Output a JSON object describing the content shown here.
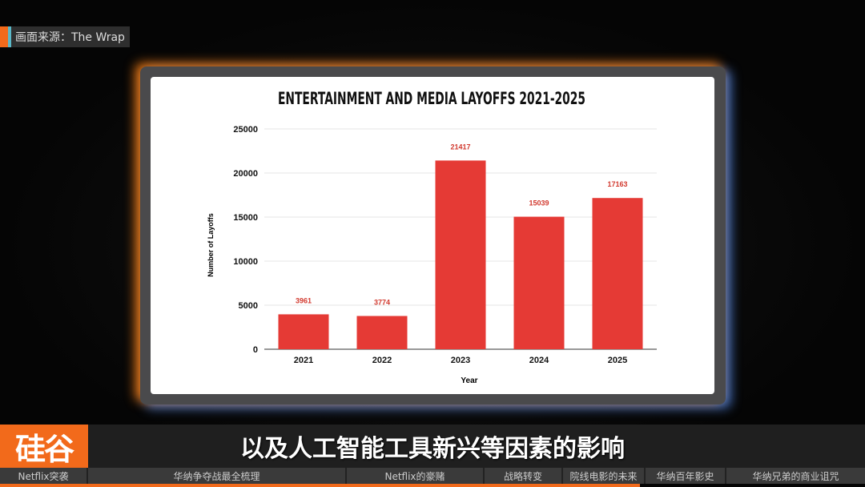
{
  "source_label": "画面来源：The Wrap",
  "logo": "硅谷101",
  "caption": "以及人工智能工具新兴等因素的影响",
  "chapters": [
    {
      "label": "Netflix突袭"
    },
    {
      "label": "华纳争夺战最全梳理"
    },
    {
      "label": "Netflix的豪赌"
    },
    {
      "label": "战略转变"
    },
    {
      "label": "院线电影的未来"
    },
    {
      "label": "华纳百年影史"
    },
    {
      "label": "华纳兄弟的商业诅咒"
    }
  ],
  "playback_progress_percent": 74,
  "colors": {
    "accent": "#f26a1b",
    "bar": "#e53a35"
  },
  "chart_data": {
    "type": "bar",
    "title": "ENTERTAINMENT AND MEDIA LAYOFFS 2021-2025",
    "xlabel": "Year",
    "ylabel": "Number of Layoffs",
    "categories": [
      "2021",
      "2022",
      "2023",
      "2024",
      "2025"
    ],
    "values": [
      3961,
      3774,
      21417,
      15039,
      17163
    ],
    "ylim": [
      0,
      25000
    ],
    "yticks": [
      0,
      5000,
      10000,
      15000,
      20000,
      25000
    ],
    "grid": true
  }
}
